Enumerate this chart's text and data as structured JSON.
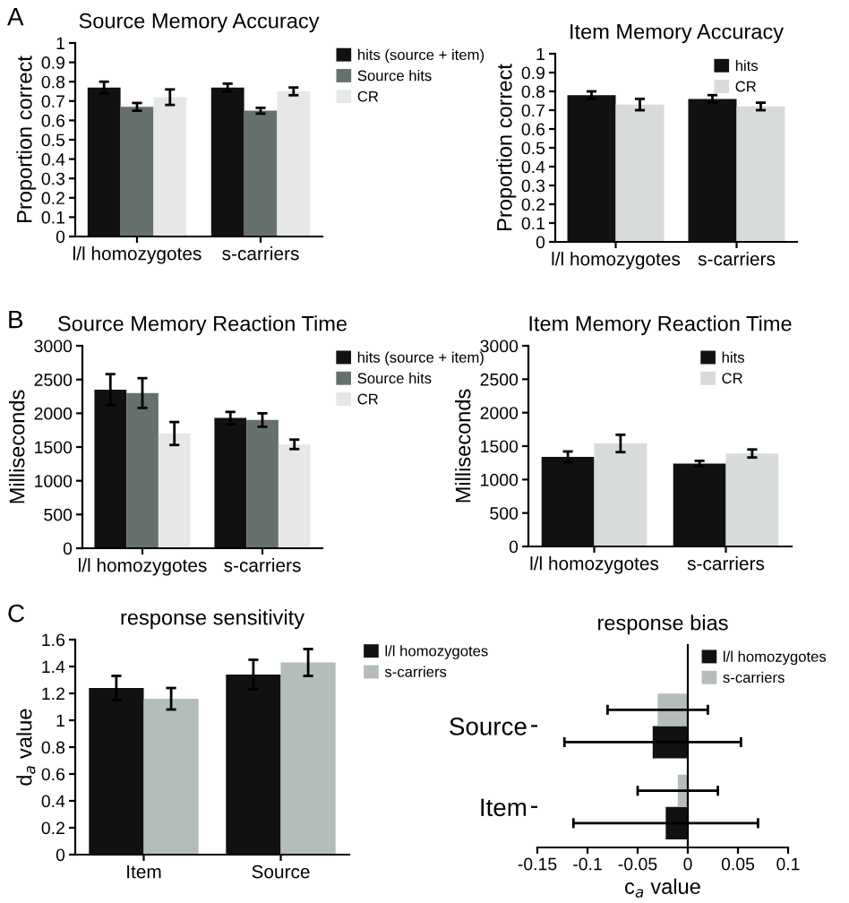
{
  "chart_data": [
    {
      "type": "bar",
      "title": "Source Memory Accuracy",
      "ylabel": "Proportion correct",
      "annotations": [
        "A"
      ],
      "categories": [
        "l/l homozygotes",
        "s-carriers"
      ],
      "legend": "right",
      "ylim": [
        0,
        1
      ],
      "yticks": [
        0,
        0.1,
        0.2,
        0.3,
        0.4,
        0.5,
        0.6,
        0.7,
        0.8,
        0.9,
        1
      ],
      "series": [
        {
          "name": "hits (source + item)",
          "color": "#111111",
          "values": [
            0.77,
            0.77
          ],
          "errors": [
            0.03,
            0.02
          ]
        },
        {
          "name": "Source hits",
          "color": "#66716f",
          "values": [
            0.67,
            0.65
          ],
          "errors": [
            0.02,
            0.015
          ]
        },
        {
          "name": "CR",
          "color": "#e6e8e8",
          "values": [
            0.72,
            0.75
          ],
          "errors": [
            0.04,
            0.02
          ]
        }
      ]
    },
    {
      "type": "bar",
      "title": "Item Memory Accuracy",
      "ylabel": "Proportion correct",
      "categories": [
        "l/l homozygotes",
        "s-carriers"
      ],
      "legend": "top right",
      "ylim": [
        0,
        1
      ],
      "yticks": [
        0,
        0.1,
        0.2,
        0.3,
        0.4,
        0.5,
        0.6,
        0.7,
        0.8,
        0.9,
        1
      ],
      "series": [
        {
          "name": "hits",
          "color": "#111111",
          "values": [
            0.78,
            0.76
          ],
          "errors": [
            0.02,
            0.02
          ]
        },
        {
          "name": "CR",
          "color": "#d8dbdb",
          "values": [
            0.73,
            0.72
          ],
          "errors": [
            0.03,
            0.02
          ]
        }
      ]
    },
    {
      "type": "bar",
      "title": "Source Memory Reaction Time",
      "ylabel": "Milliseconds",
      "annotations": [
        "B"
      ],
      "categories": [
        "l/l homozygotes",
        "s-carriers"
      ],
      "legend": "right",
      "ylim": [
        0,
        3000
      ],
      "yticks": [
        0,
        500,
        1000,
        1500,
        2000,
        2500,
        3000
      ],
      "series": [
        {
          "name": "hits (source + item)",
          "color": "#111111",
          "values": [
            2350,
            1930
          ],
          "errors": [
            230,
            90
          ]
        },
        {
          "name": "Source hits",
          "color": "#66716f",
          "values": [
            2300,
            1900
          ],
          "errors": [
            220,
            100
          ]
        },
        {
          "name": "CR",
          "color": "#e6e8e8",
          "values": [
            1700,
            1540
          ],
          "errors": [
            170,
            70
          ]
        }
      ]
    },
    {
      "type": "bar",
      "title": "Item Memory Reaction Time",
      "ylabel": "Milliseconds",
      "categories": [
        "l/l homozygotes",
        "s-carriers"
      ],
      "legend": "top right",
      "ylim": [
        0,
        3000
      ],
      "yticks": [
        0,
        500,
        1000,
        1500,
        2000,
        2500,
        3000
      ],
      "series": [
        {
          "name": "hits",
          "color": "#111111",
          "values": [
            1340,
            1240
          ],
          "errors": [
            80,
            40
          ]
        },
        {
          "name": "CR",
          "color": "#d8dbdb",
          "values": [
            1540,
            1390
          ],
          "errors": [
            130,
            60
          ]
        }
      ]
    },
    {
      "type": "bar",
      "title": "response sensitivity",
      "ylabel": "d$_{a}$ value",
      "annotations": [
        "C"
      ],
      "categories": [
        "Item",
        "Source"
      ],
      "legend": "right",
      "ylim": [
        0,
        1.6
      ],
      "yticks": [
        0,
        0.2,
        0.4,
        0.6,
        0.8,
        1,
        1.2,
        1.4,
        1.6
      ],
      "series": [
        {
          "name": "l/l homozygotes",
          "color": "#111111",
          "values": [
            1.24,
            1.34
          ],
          "errors": [
            0.09,
            0.11
          ]
        },
        {
          "name": "s-carriers",
          "color": "#b5bdbb",
          "values": [
            1.16,
            1.43
          ],
          "errors": [
            0.08,
            0.1
          ]
        }
      ]
    },
    {
      "type": "bar",
      "orientation": "horizontal",
      "title": "response bias",
      "xlabel": "c$_{a}$ value",
      "categories": [
        "Source",
        "Item"
      ],
      "legend": "top right",
      "xlim": [
        -0.15,
        0.1
      ],
      "xticks": [
        -0.15,
        -0.1,
        -0.05,
        0,
        0.05,
        0.1
      ],
      "series": [
        {
          "name": "l/l homozygotes",
          "color": "#111111",
          "values": [
            -0.035,
            -0.022
          ],
          "errors": [
            0.088,
            0.092
          ]
        },
        {
          "name": "s-carriers",
          "color": "#b5bdbb",
          "values": [
            -0.03,
            -0.01
          ],
          "errors": [
            0.05,
            0.04
          ]
        }
      ]
    }
  ]
}
